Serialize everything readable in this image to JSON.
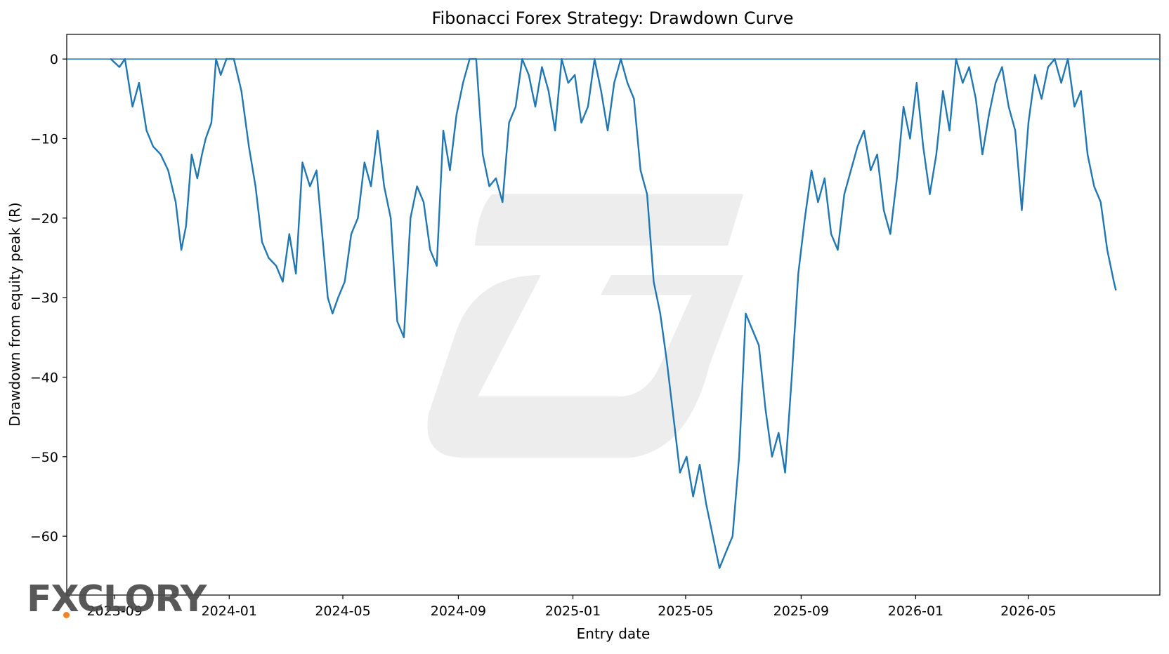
{
  "chart_data": {
    "type": "line",
    "title": "Fibonacci Forex Strategy: Drawdown Curve",
    "xlabel": "Entry date",
    "ylabel": "Drawdown from equity peak (R)",
    "xlim": [
      "2023-07-12",
      "2026-09-18"
    ],
    "ylim": [
      -67.4,
      3.1
    ],
    "x_ticks": [
      "2023-09",
      "2024-01",
      "2024-05",
      "2024-09",
      "2025-01",
      "2025-05",
      "2025-09",
      "2026-01",
      "2026-05"
    ],
    "y_ticks": [
      0,
      -10,
      -20,
      -30,
      -40,
      -50,
      -60
    ],
    "grid": false,
    "line_color": "#1f77b4",
    "zero_line_color": "#1f77b4",
    "series": [
      {
        "x": [
          "2023-08-28",
          "2023-09-06",
          "2023-09-12",
          "2023-09-20",
          "2023-09-27",
          "2023-10-05",
          "2023-10-12",
          "2023-10-20",
          "2023-10-28",
          "2023-11-05",
          "2023-11-11",
          "2023-11-16",
          "2023-11-22",
          "2023-11-28",
          "2023-12-03",
          "2023-12-07",
          "2023-12-13",
          "2023-12-18",
          "2023-12-23",
          "2023-12-29",
          "2024-01-06",
          "2024-01-14",
          "2024-01-22",
          "2024-01-29",
          "2024-02-05",
          "2024-02-12",
          "2024-02-20",
          "2024-02-27",
          "2024-03-05",
          "2024-03-12",
          "2024-03-19",
          "2024-03-27",
          "2024-04-03",
          "2024-04-09",
          "2024-04-15",
          "2024-04-20",
          "2024-04-26",
          "2024-05-03",
          "2024-05-10",
          "2024-05-17",
          "2024-05-24",
          "2024-05-31",
          "2024-06-07",
          "2024-06-14",
          "2024-06-21",
          "2024-06-28",
          "2024-07-05",
          "2024-07-12",
          "2024-07-19",
          "2024-07-26",
          "2024-08-02",
          "2024-08-09",
          "2024-08-16",
          "2024-08-23",
          "2024-08-30",
          "2024-09-06",
          "2024-09-13",
          "2024-09-20",
          "2024-09-27",
          "2024-10-04",
          "2024-10-11",
          "2024-10-18",
          "2024-10-25",
          "2024-11-01",
          "2024-11-08",
          "2024-11-15",
          "2024-11-22",
          "2024-11-29",
          "2024-12-06",
          "2024-12-13",
          "2024-12-20",
          "2024-12-27",
          "2025-01-03",
          "2025-01-10",
          "2025-01-17",
          "2025-01-24",
          "2025-01-31",
          "2025-02-07",
          "2025-02-14",
          "2025-02-21",
          "2025-02-28",
          "2025-03-07",
          "2025-03-14",
          "2025-03-21",
          "2025-03-28",
          "2025-04-04",
          "2025-04-11",
          "2025-04-18",
          "2025-04-25",
          "2025-05-02",
          "2025-05-09",
          "2025-05-16",
          "2025-05-23",
          "2025-05-30",
          "2025-06-06",
          "2025-06-13",
          "2025-06-20",
          "2025-06-27",
          "2025-07-04",
          "2025-07-11",
          "2025-07-18",
          "2025-07-25",
          "2025-08-01",
          "2025-08-08",
          "2025-08-15",
          "2025-08-22",
          "2025-08-29",
          "2025-09-05",
          "2025-09-12",
          "2025-09-19",
          "2025-09-26",
          "2025-10-03",
          "2025-10-10",
          "2025-10-17",
          "2025-10-24",
          "2025-10-31",
          "2025-11-07",
          "2025-11-14",
          "2025-11-21",
          "2025-11-28",
          "2025-12-05",
          "2025-12-12",
          "2025-12-19",
          "2025-12-26",
          "2026-01-02",
          "2026-01-09",
          "2026-01-16",
          "2026-01-23",
          "2026-01-30",
          "2026-02-06",
          "2026-02-13",
          "2026-02-20",
          "2026-02-27",
          "2026-03-06",
          "2026-03-13",
          "2026-03-20",
          "2026-03-27",
          "2026-04-03",
          "2026-04-10",
          "2026-04-17",
          "2026-04-24",
          "2026-05-01",
          "2026-05-08",
          "2026-05-15",
          "2026-05-22",
          "2026-05-29",
          "2026-06-05",
          "2026-06-12",
          "2026-06-19",
          "2026-06-26",
          "2026-07-03",
          "2026-07-10",
          "2026-07-17",
          "2026-07-24",
          "2026-07-31",
          "2026-08-02"
        ],
        "values": [
          0,
          -1,
          0,
          -6,
          -3,
          -9,
          -11,
          -12,
          -14,
          -18,
          -24,
          -21,
          -12,
          -15,
          -12,
          -10,
          -8,
          0,
          -2,
          0,
          0,
          -4,
          -11,
          -16,
          -23,
          -25,
          -26,
          -28,
          -22,
          -27,
          -13,
          -16,
          -14,
          -22,
          -30,
          -32,
          -30,
          -28,
          -22,
          -20,
          -13,
          -16,
          -9,
          -16,
          -20,
          -33,
          -35,
          -20,
          -16,
          -18,
          -24,
          -26,
          -9,
          -14,
          -7,
          -3,
          0,
          0,
          -12,
          -16,
          -15,
          -18,
          -8,
          -6,
          0,
          -2,
          -6,
          -1,
          -4,
          -9,
          0,
          -3,
          -2,
          -8,
          -6,
          0,
          -4,
          -9,
          -3,
          0,
          -3,
          -5,
          -14,
          -17,
          -28,
          -32,
          -38,
          -45,
          -52,
          -50,
          -55,
          -51,
          -56,
          -60,
          -64,
          -62,
          -60,
          -50,
          -32,
          -34,
          -36,
          -44,
          -50,
          -47,
          -52,
          -40,
          -27,
          -20,
          -14,
          -18,
          -15,
          -22,
          -24,
          -17,
          -14,
          -11,
          -9,
          -14,
          -12,
          -19,
          -22,
          -15,
          -6,
          -10,
          -3,
          -11,
          -17,
          -12,
          -4,
          -9,
          0,
          -3,
          -1,
          -5,
          -12,
          -7,
          -3,
          -1,
          -6,
          -9,
          -19,
          -8,
          -2,
          -5,
          -1,
          0,
          -3,
          0,
          -6,
          -4,
          -12,
          -16,
          -18,
          -24,
          -28,
          -29
        ],
        "name": ""
      }
    ]
  }
}
